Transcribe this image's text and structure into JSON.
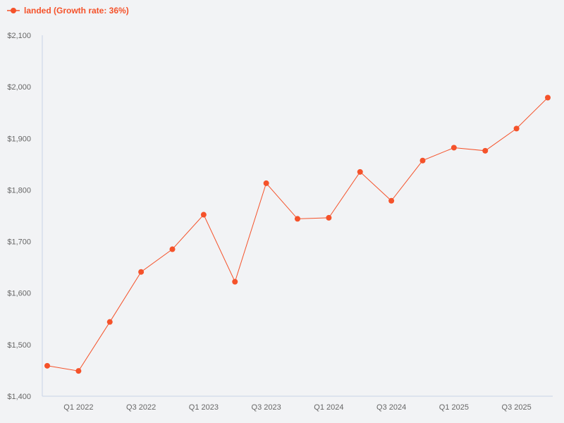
{
  "legend": {
    "label": "landed (Growth rate: 36%)",
    "icon": "line-marker-icon"
  },
  "colors": {
    "background": "#f2f3f5",
    "series": "#f5522a",
    "axis": "#c8d3e6",
    "tick_text": "#666666"
  },
  "chart_data": {
    "type": "line",
    "title": "",
    "xlabel": "",
    "ylabel": "",
    "ylim": [
      1400,
      2100
    ],
    "grid": false,
    "legend_position": "top-left",
    "yticks": [
      "$1,400",
      "$1,500",
      "$1,600",
      "$1,700",
      "$1,800",
      "$1,900",
      "$2,000",
      "$2,100"
    ],
    "ytick_values": [
      1400,
      1500,
      1600,
      1700,
      1800,
      1900,
      2000,
      2100
    ],
    "xtick_labels": [
      "Q1 2022",
      "Q3 2022",
      "Q1 2023",
      "Q3 2023",
      "Q1 2024",
      "Q3 2024",
      "Q1 2025",
      "Q3 2025"
    ],
    "xtick_indices": [
      1,
      3,
      5,
      7,
      9,
      11,
      13,
      15
    ],
    "categories": [
      "Q4 2021",
      "Q1 2022",
      "Q2 2022",
      "Q3 2022",
      "Q4 2022",
      "Q1 2023",
      "Q2 2023",
      "Q3 2023",
      "Q4 2023",
      "Q1 2024",
      "Q2 2024",
      "Q3 2024",
      "Q4 2024",
      "Q1 2025",
      "Q2 2025",
      "Q3 2025",
      "Q4 2025"
    ],
    "series": [
      {
        "name": "landed (Growth rate: 36%)",
        "color": "#f5522a",
        "values": [
          1459,
          1449,
          1544,
          1641,
          1685,
          1752,
          1622,
          1813,
          1744,
          1746,
          1835,
          1779,
          1857,
          1882,
          1876,
          1919,
          1979
        ]
      }
    ]
  }
}
